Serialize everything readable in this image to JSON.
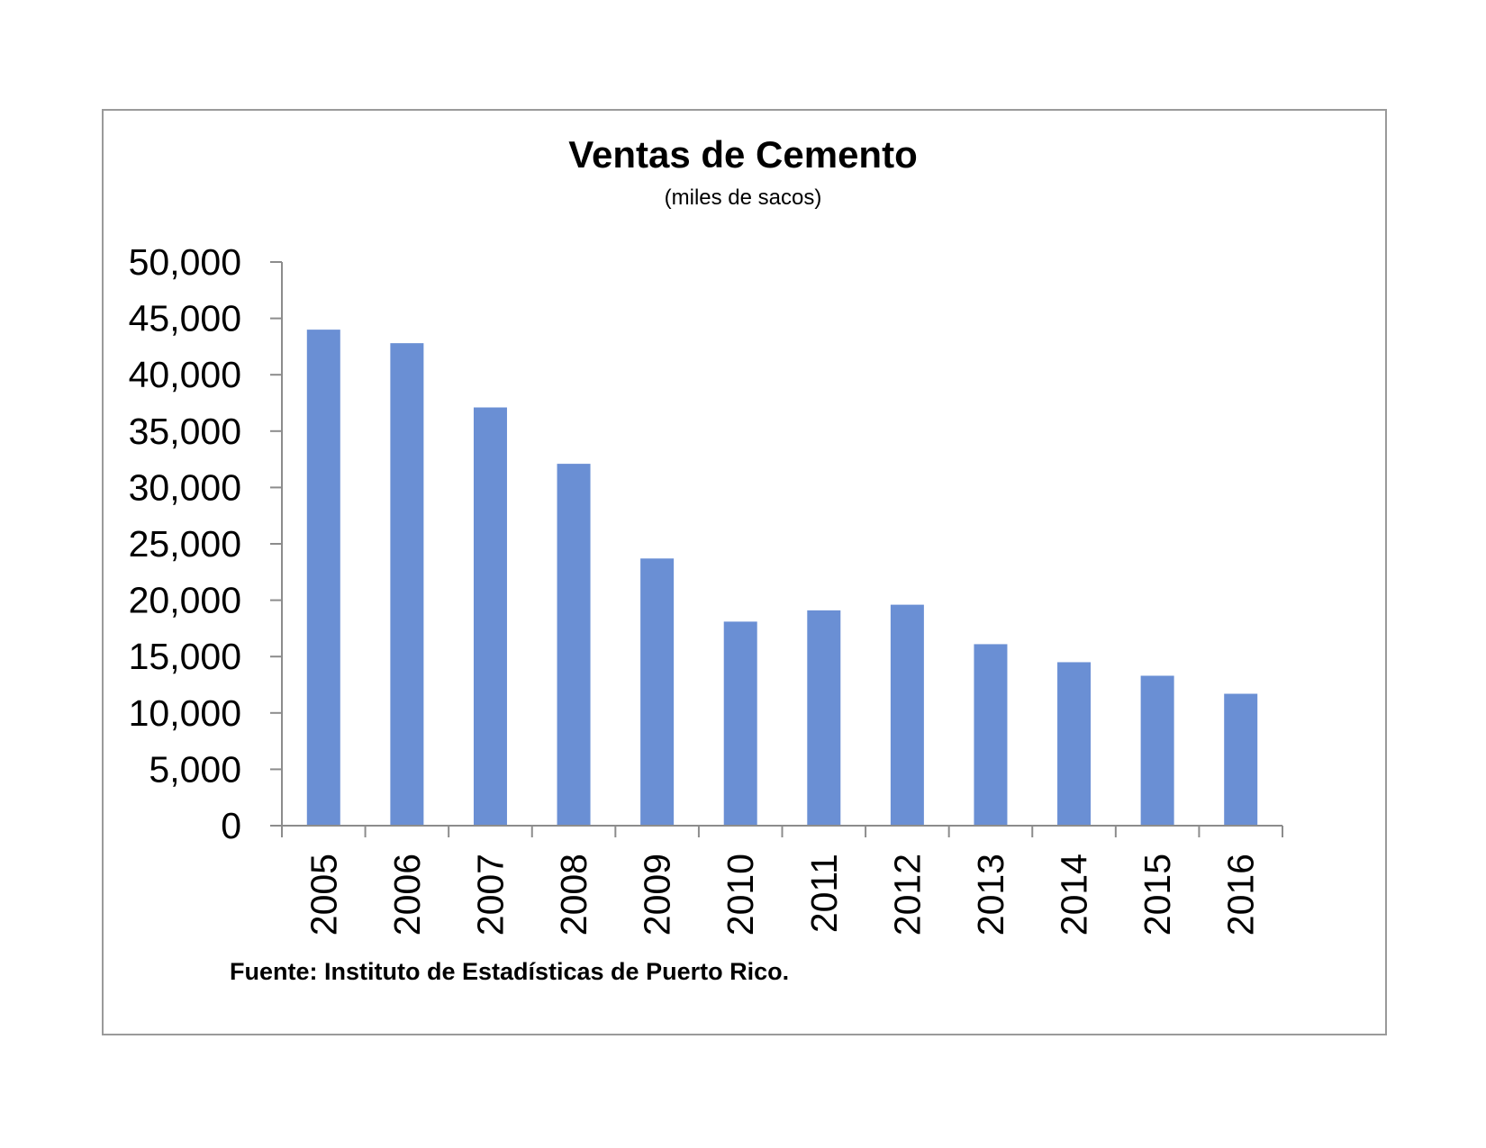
{
  "chart_data": {
    "type": "bar",
    "title": "Ventas de Cemento",
    "subtitle": "(miles de sacos)",
    "xlabel": "",
    "ylabel": "",
    "categories": [
      "2005",
      "2006",
      "2007",
      "2008",
      "2009",
      "2010",
      "2011",
      "2012",
      "2013",
      "2014",
      "2015",
      "2016"
    ],
    "values": [
      44000,
      42800,
      37100,
      32100,
      23700,
      18100,
      19100,
      19600,
      16100,
      14500,
      13300,
      11700
    ],
    "ylim": [
      0,
      50000
    ],
    "yticks": [
      "0",
      "5,000",
      "10,000",
      "15,000",
      "20,000",
      "25,000",
      "30,000",
      "35,000",
      "40,000",
      "45,000",
      "50,000"
    ],
    "ytick_values": [
      0,
      5000,
      10000,
      15000,
      20000,
      25000,
      30000,
      35000,
      40000,
      45000,
      50000
    ],
    "grid": false,
    "legend": "none",
    "bar_color": "#6a8fd4",
    "axis_color": "#8c8c8c",
    "source": "Fuente: Instituto de Estadísticas de Puerto Rico."
  }
}
